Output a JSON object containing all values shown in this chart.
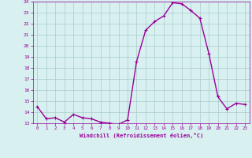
{
  "hours": [
    0,
    1,
    2,
    3,
    4,
    5,
    6,
    7,
    8,
    9,
    10,
    11,
    12,
    13,
    14,
    15,
    16,
    17,
    18,
    19,
    20,
    21,
    22,
    23
  ],
  "values": [
    14.5,
    13.4,
    13.5,
    13.1,
    13.8,
    13.5,
    13.4,
    13.1,
    13.0,
    12.9,
    13.3,
    18.6,
    21.4,
    22.2,
    22.7,
    23.9,
    23.8,
    23.2,
    22.5,
    19.3,
    15.4,
    14.3,
    14.8,
    14.7
  ],
  "line_color": "#990099",
  "marker": "+",
  "marker_size": 3.0,
  "bg_color": "#d8f0f0",
  "grid_color": "#aacccc",
  "xlabel": "Windchill (Refroidissement éolien,°C)",
  "ylim": [
    13,
    24
  ],
  "yticks": [
    13,
    14,
    15,
    16,
    17,
    18,
    19,
    20,
    21,
    22,
    23,
    24
  ],
  "xlim": [
    -0.5,
    23.5
  ],
  "xticks": [
    0,
    1,
    2,
    3,
    4,
    5,
    6,
    7,
    8,
    9,
    10,
    11,
    12,
    13,
    14,
    15,
    16,
    17,
    18,
    19,
    20,
    21,
    22,
    23
  ],
  "tick_color": "#990099",
  "label_color": "#990099",
  "line_width": 1.0
}
